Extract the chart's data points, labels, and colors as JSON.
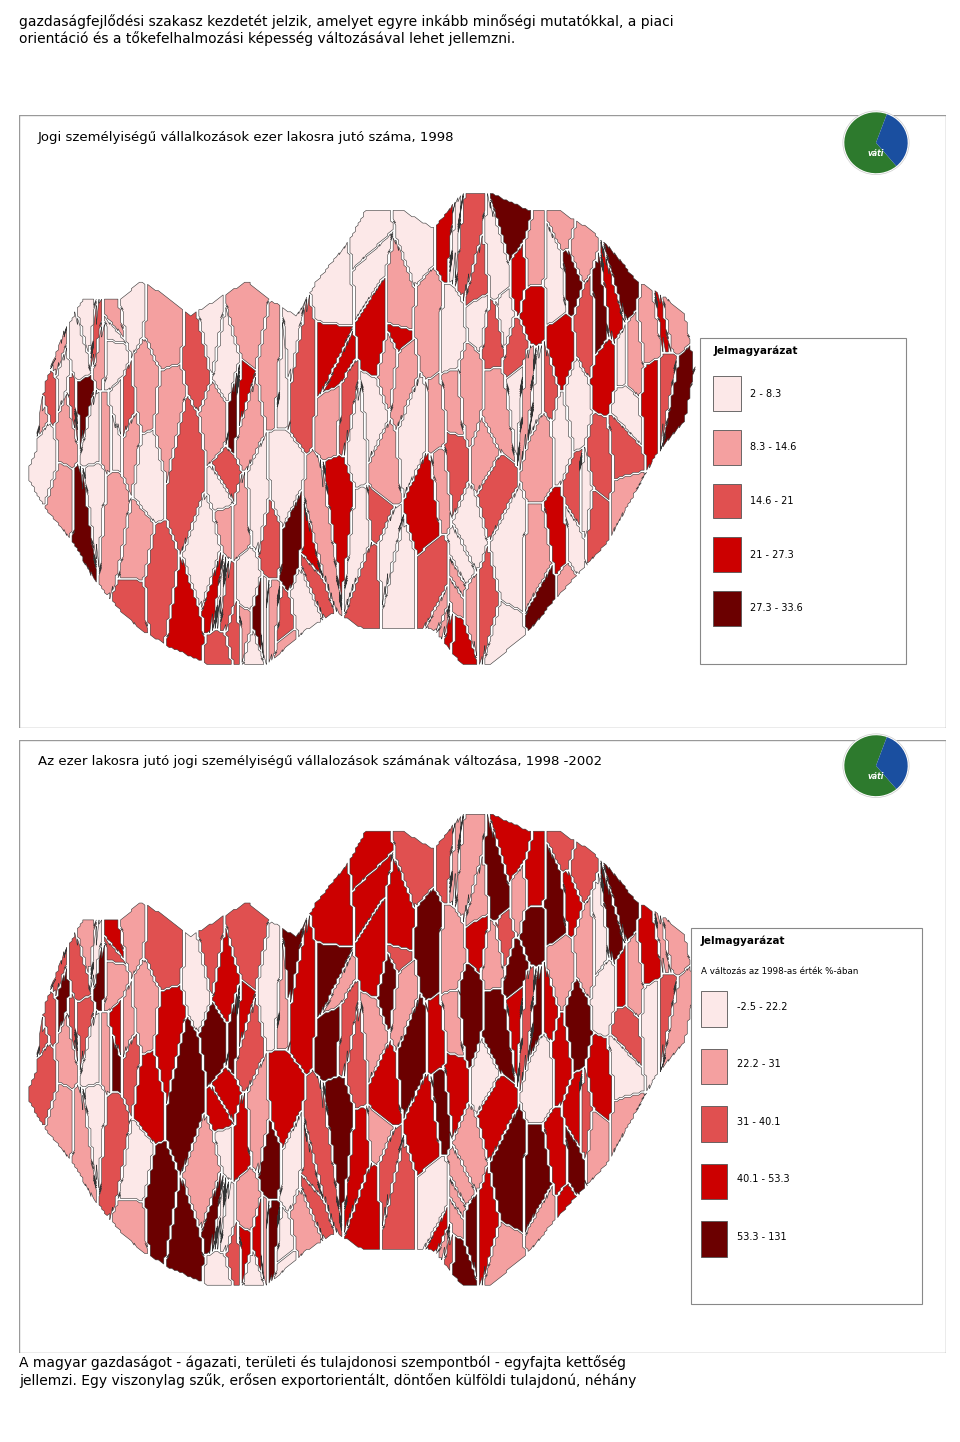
{
  "background_color": "#ffffff",
  "page_text_top": "gazdaságfejlődési szakasz kezdetét jelzik, amelyet egyre inkább minőségi mutatókkal, a piaci\norientáció és a tőkefelhalmozási képesség változásával lehet jellemzni.",
  "page_text_bottom": "A magyar gazdaságot - ágazati, területi és tulajdonosi szempontból - egyfajta kettőség\njellemzi. Egy viszonylag szűk, erősen exportorientált, döntően külföldi tulajdonú, néhány",
  "map1_title": "Jogi személyiségű vállalkozások ezer lakosra jutó száma, 1998",
  "map1_legend_title": "Jelmagyarázat",
  "map1_legend_items": [
    {
      "label": "2 - 8.3",
      "color": "#fce8e8"
    },
    {
      "label": "8.3 - 14.6",
      "color": "#f4a0a0"
    },
    {
      "label": "14.6 - 21",
      "color": "#e05050"
    },
    {
      "label": "21 - 27.3",
      "color": "#cc0000"
    },
    {
      "label": "27.3 - 33.6",
      "color": "#6b0000"
    }
  ],
  "map2_title": "Az ezer lakosra jutó jogi személyiségű vállalozások számának változása, 1998 -2002",
  "map2_legend_title": "Jelmagyarázat",
  "map2_legend_subtitle": "A változás az 1998-as érték %-ában",
  "map2_legend_items": [
    {
      "label": "-2.5 - 22.2",
      "color": "#fce8e8"
    },
    {
      "label": "22.2 - 31",
      "color": "#f4a0a0"
    },
    {
      "label": "31 - 40.1",
      "color": "#e05050"
    },
    {
      "label": "40.1 - 53.3",
      "color": "#cc0000"
    },
    {
      "label": "53.3 - 131",
      "color": "#6b0000"
    }
  ],
  "border_color": "#333333",
  "text_color": "#000000",
  "body_fontsize": 10
}
